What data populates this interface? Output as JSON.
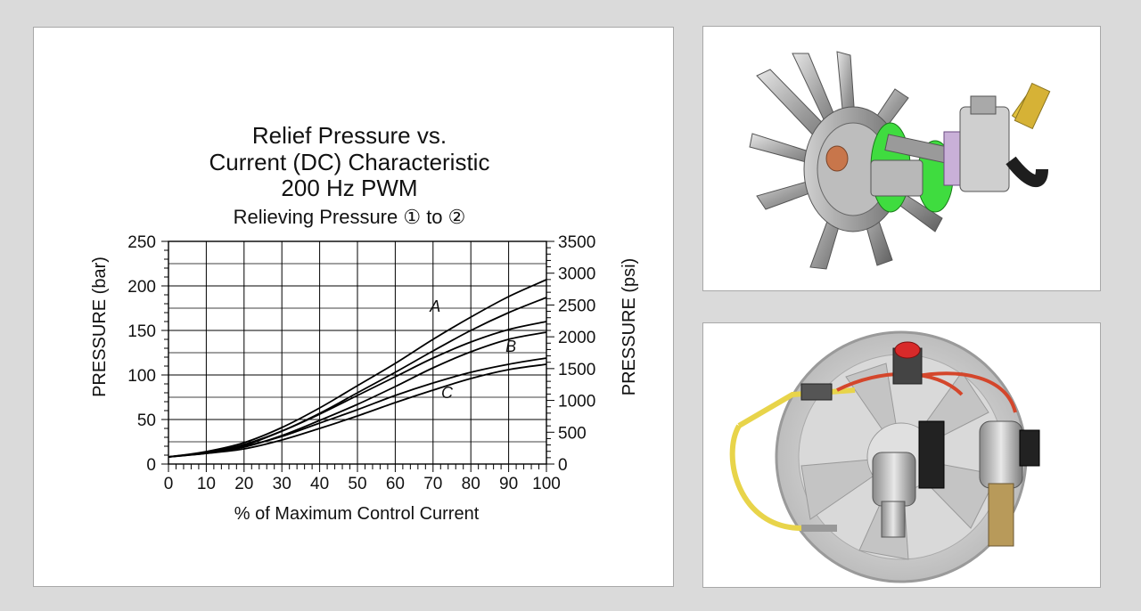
{
  "chart_data": {
    "type": "line",
    "title_lines": [
      "Relief Pressure vs.",
      "Current (DC) Characteristic",
      "200 Hz PWM"
    ],
    "subtitle": "Relieving Pressure ① to ②",
    "xlabel": "% of Maximum Control Current",
    "ylabel_left": "PRESSURE (bar)",
    "ylabel_right": "PRESSURE (psi)",
    "xlim": [
      0,
      100
    ],
    "ylim": [
      0,
      250
    ],
    "ylim_right": [
      0,
      3500
    ],
    "x_ticks": [
      "0",
      "10",
      "20",
      "30",
      "40",
      "50",
      "60",
      "70",
      "80",
      "90",
      "100"
    ],
    "y_ticks_left": [
      "0",
      "50",
      "100",
      "150",
      "200",
      "250"
    ],
    "y_ticks_right": [
      "0",
      "500",
      "1000",
      "1500",
      "2000",
      "2500",
      "3000",
      "3500"
    ],
    "grid": true,
    "series": [
      {
        "name": "A",
        "x": [
          0,
          10,
          20,
          30,
          40,
          50,
          60,
          70,
          80,
          90,
          100
        ],
        "y_low": [
          8,
          13,
          21,
          37,
          57,
          80,
          103,
          127,
          150,
          170,
          187
        ],
        "y_high": [
          8,
          14,
          24,
          41,
          63,
          88,
          113,
          140,
          165,
          188,
          207
        ]
      },
      {
        "name": "B",
        "x": [
          0,
          10,
          20,
          30,
          40,
          50,
          60,
          70,
          80,
          90,
          100
        ],
        "y_low": [
          8,
          12,
          19,
          32,
          49,
          67,
          87,
          108,
          126,
          140,
          148
        ],
        "y_high": [
          8,
          13,
          22,
          37,
          56,
          77,
          98,
          119,
          137,
          151,
          160
        ]
      },
      {
        "name": "C",
        "x": [
          0,
          10,
          20,
          30,
          40,
          50,
          60,
          70,
          80,
          90,
          100
        ],
        "y_low": [
          8,
          12,
          17,
          27,
          40,
          54,
          69,
          83,
          96,
          106,
          112
        ],
        "y_high": [
          8,
          13,
          20,
          31,
          46,
          61,
          77,
          91,
          103,
          112,
          119
        ]
      }
    ]
  },
  "photos": {
    "top_alt": "fan with hydraulic motor assembly",
    "bottom_alt": "fan with solenoid valves and wiring"
  }
}
